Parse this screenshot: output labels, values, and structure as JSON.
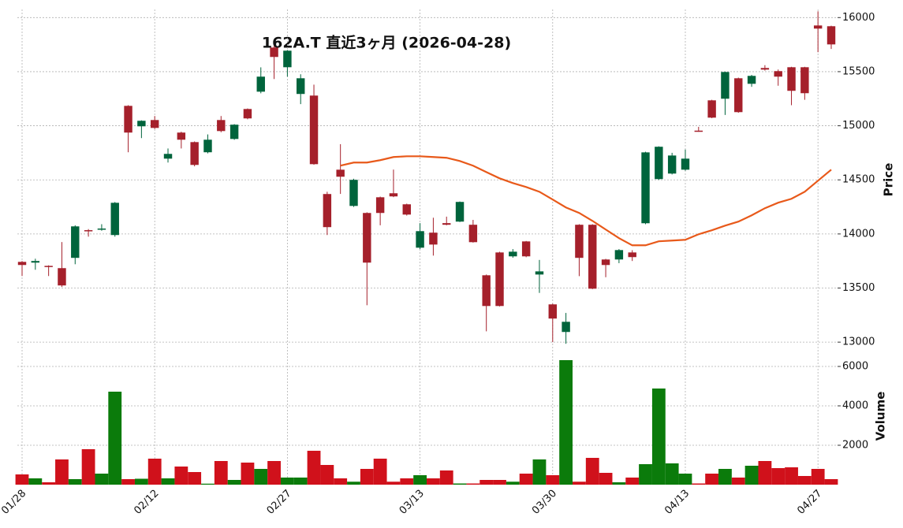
{
  "chart_data": [
    {
      "type": "candlestick",
      "title": "162A.T  直近3ヶ月 (2026-04-28)",
      "ylabel": "Price",
      "categories": [
        "01/28",
        null,
        null,
        null,
        null,
        null,
        null,
        null,
        null,
        null,
        "02/12",
        null,
        null,
        null,
        null,
        null,
        null,
        null,
        null,
        null,
        "02/27",
        null,
        null,
        null,
        null,
        null,
        null,
        null,
        null,
        null,
        "03/13",
        null,
        null,
        null,
        null,
        null,
        null,
        null,
        null,
        null,
        "03/30",
        null,
        null,
        null,
        null,
        null,
        null,
        null,
        null,
        null,
        "04/13",
        null,
        null,
        null,
        null,
        null,
        null,
        null,
        null,
        null,
        "04/27",
        null
      ],
      "open": [
        13742,
        13735,
        13705,
        13684,
        13779,
        14035,
        14040,
        13990,
        15184,
        14995,
        15053,
        14696,
        14937,
        14849,
        14755,
        15053,
        14878,
        15155,
        15315,
        15723,
        15541,
        15294,
        15279,
        14369,
        14594,
        14259,
        14194,
        14339,
        14376,
        14274,
        13873,
        14012,
        14100,
        14114,
        14085,
        13618,
        13829,
        13793,
        13931,
        13625,
        13349,
        13094,
        14085,
        14085,
        13764,
        13764,
        13829,
        14099,
        14507,
        14558,
        14594,
        14955,
        15235,
        15250,
        15439,
        15388,
        15534,
        15505,
        15541,
        15541,
        15927,
        15920
      ],
      "high": [
        13750,
        13771,
        13710,
        13925,
        14080,
        14045,
        14090,
        14295,
        15190,
        15050,
        15090,
        14790,
        14945,
        14855,
        14920,
        15090,
        15015,
        15160,
        15540,
        15740,
        15700,
        15476,
        15380,
        14390,
        14830,
        14510,
        14200,
        14345,
        14595,
        14280,
        14100,
        14150,
        14160,
        14300,
        14130,
        13625,
        13835,
        13860,
        13935,
        13760,
        13355,
        13270,
        14090,
        14090,
        13770,
        13860,
        13850,
        14760,
        14810,
        14750,
        14780,
        14990,
        15240,
        15500,
        15445,
        15470,
        15560,
        15520,
        15545,
        15545,
        16058,
        15925
      ],
      "low": [
        13611,
        13669,
        13611,
        13510,
        13720,
        13975,
        14030,
        13975,
        14755,
        14886,
        14970,
        14660,
        14790,
        14625,
        14745,
        14940,
        14870,
        15060,
        15300,
        15432,
        15454,
        15200,
        14640,
        13990,
        14370,
        14250,
        13341,
        14080,
        14340,
        14170,
        13860,
        13800,
        14080,
        14110,
        13920,
        13100,
        13330,
        13780,
        13785,
        13455,
        13000,
        12985,
        13610,
        13490,
        13600,
        13730,
        13750,
        14090,
        14500,
        14550,
        14585,
        14945,
        15070,
        15100,
        15120,
        15360,
        15510,
        15370,
        15190,
        15240,
        15680,
        15710
      ],
      "close": [
        13713,
        13750,
        13700,
        13524,
        14070,
        14030,
        14050,
        14288,
        14937,
        15046,
        14980,
        14740,
        14871,
        14638,
        14871,
        14951,
        15010,
        15068,
        15454,
        15636,
        15694,
        15439,
        14645,
        14063,
        14529,
        14500,
        13735,
        14194,
        14347,
        14179,
        14026,
        13902,
        14085,
        14296,
        13924,
        13334,
        13334,
        13836,
        13793,
        13654,
        13218,
        13188,
        13779,
        13494,
        13713,
        13851,
        13786,
        14754,
        14806,
        14725,
        14696,
        14951,
        15075,
        15497,
        15126,
        15461,
        15519,
        15454,
        15323,
        15301,
        15898,
        15752
      ],
      "ma": {
        "color": "#e8591a",
        "values": [
          null,
          null,
          null,
          null,
          null,
          null,
          null,
          null,
          null,
          null,
          null,
          null,
          null,
          null,
          null,
          null,
          null,
          null,
          null,
          null,
          null,
          null,
          null,
          null,
          14631,
          14660,
          14660,
          14682,
          14711,
          14718,
          14718,
          14711,
          14704,
          14674,
          14631,
          14572,
          14514,
          14470,
          14434,
          14390,
          14318,
          14245,
          14194,
          14121,
          14041,
          13961,
          13895,
          13895,
          13932,
          13939,
          13946,
          13997,
          14034,
          14077,
          14114,
          14172,
          14238,
          14289,
          14325,
          14390,
          14492,
          14594
        ]
      },
      "color_up": "#00643c",
      "color_down": "#a5202b",
      "ylim": [
        12870,
        16075
      ],
      "yticks": [
        13000,
        13500,
        14000,
        14500,
        15000,
        15500,
        16000
      ],
      "grid": true
    },
    {
      "type": "bar",
      "ylabel": "Volume",
      "values": [
        520,
        320,
        120,
        1280,
        280,
        1800,
        560,
        4720,
        280,
        300,
        1320,
        320,
        920,
        640,
        50,
        1200,
        240,
        1120,
        800,
        1200,
        360,
        360,
        1720,
        1000,
        320,
        150,
        800,
        1320,
        150,
        320,
        480,
        320,
        720,
        60,
        60,
        240,
        240,
        150,
        560,
        1280,
        480,
        6320,
        150,
        1360,
        600,
        120,
        360,
        1040,
        4880,
        1080,
        560,
        60,
        560,
        800,
        360,
        960,
        1200,
        840,
        880,
        440,
        800,
        280
      ],
      "color_up": "#0b7b0b",
      "color_down": "#d0111b",
      "ylim": [
        0,
        6400
      ],
      "yticks": [
        2000,
        4000,
        6000
      ],
      "grid": true
    }
  ]
}
